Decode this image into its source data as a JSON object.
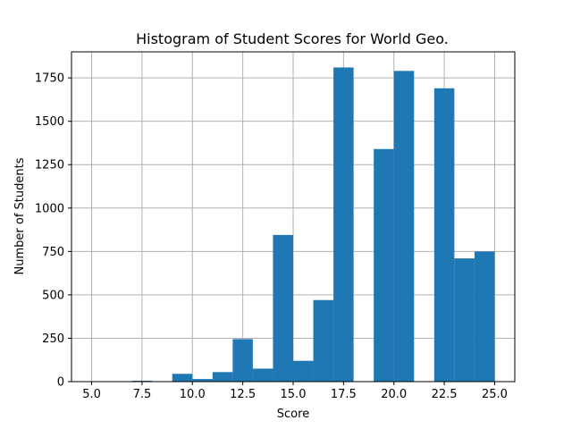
{
  "chart_data": {
    "type": "bar",
    "subtype": "histogram",
    "title": "Histogram of Student Scores for World Geo.",
    "xlabel": "Score",
    "ylabel": "Number of Students",
    "xlim": [
      4.0,
      26.0
    ],
    "ylim": [
      0,
      1900
    ],
    "grid": true,
    "bar_color": "#1f77b4",
    "bin_width": 1.0,
    "bins": [
      {
        "x0": 5.0,
        "x1": 6.0,
        "value": 0
      },
      {
        "x0": 6.0,
        "x1": 7.0,
        "value": 0
      },
      {
        "x0": 7.0,
        "x1": 8.0,
        "value": 5
      },
      {
        "x0": 8.0,
        "x1": 9.0,
        "value": 0
      },
      {
        "x0": 9.0,
        "x1": 10.0,
        "value": 45
      },
      {
        "x0": 10.0,
        "x1": 11.0,
        "value": 15
      },
      {
        "x0": 11.0,
        "x1": 12.0,
        "value": 55
      },
      {
        "x0": 12.0,
        "x1": 13.0,
        "value": 245
      },
      {
        "x0": 13.0,
        "x1": 14.0,
        "value": 75
      },
      {
        "x0": 14.0,
        "x1": 15.0,
        "value": 845
      },
      {
        "x0": 15.0,
        "x1": 16.0,
        "value": 120
      },
      {
        "x0": 16.0,
        "x1": 17.0,
        "value": 470
      },
      {
        "x0": 17.0,
        "x1": 18.0,
        "value": 1810
      },
      {
        "x0": 18.0,
        "x1": 19.0,
        "value": 0
      },
      {
        "x0": 19.0,
        "x1": 20.0,
        "value": 1340
      },
      {
        "x0": 20.0,
        "x1": 21.0,
        "value": 1790
      },
      {
        "x0": 21.0,
        "x1": 22.0,
        "value": 0
      },
      {
        "x0": 22.0,
        "x1": 23.0,
        "value": 1690
      },
      {
        "x0": 23.0,
        "x1": 24.0,
        "value": 710
      },
      {
        "x0": 24.0,
        "x1": 25.0,
        "value": 750
      }
    ],
    "x_ticks": [
      5.0,
      7.5,
      10.0,
      12.5,
      15.0,
      17.5,
      20.0,
      22.5,
      25.0
    ],
    "x_tick_labels": [
      "5.0",
      "7.5",
      "10.0",
      "12.5",
      "15.0",
      "17.5",
      "20.0",
      "22.5",
      "25.0"
    ],
    "y_ticks": [
      0,
      250,
      500,
      750,
      1000,
      1250,
      1500,
      1750
    ],
    "y_tick_labels": [
      "0",
      "250",
      "500",
      "750",
      "1000",
      "1250",
      "1500",
      "1750"
    ]
  }
}
